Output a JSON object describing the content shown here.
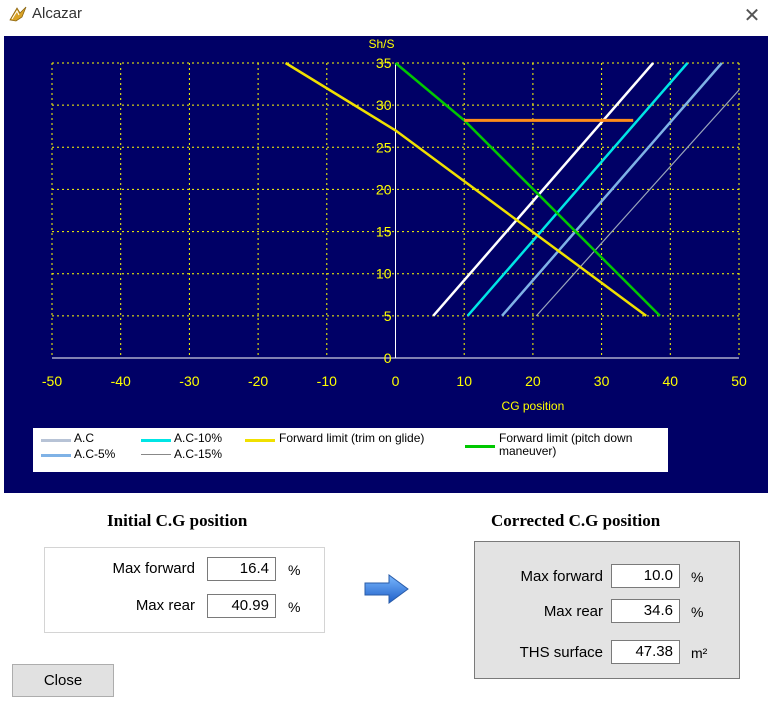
{
  "window": {
    "title": "Alcazar",
    "close_glyph": "✕",
    "icon": "alcazar-app-icon"
  },
  "chart_data": {
    "type": "line",
    "title": "",
    "xlabel": "CG position",
    "ylabel": "Sh/S",
    "xlim": [
      -50,
      50
    ],
    "ylim": [
      0,
      35
    ],
    "x_ticks": [
      -50,
      -40,
      -30,
      -20,
      -10,
      0,
      10,
      20,
      30,
      40,
      50
    ],
    "y_ticks": [
      0,
      5,
      10,
      15,
      20,
      25,
      30,
      35
    ],
    "grid": true,
    "legend_position": "bottom",
    "series": [
      {
        "name": "A.C",
        "color": "#ffffff",
        "width": 2.5,
        "points": [
          [
            5.5,
            5
          ],
          [
            37.5,
            35
          ]
        ]
      },
      {
        "name": "A.C-5%",
        "color": "#7fb2e6",
        "width": 2.5,
        "points": [
          [
            15.5,
            5
          ],
          [
            47.5,
            35
          ]
        ]
      },
      {
        "name": "A.C-10%",
        "color": "#00e5e5",
        "width": 2.5,
        "points": [
          [
            10.5,
            5
          ],
          [
            42.5,
            35
          ]
        ]
      },
      {
        "name": "A.C-15%",
        "color": "#9aa6bc",
        "width": 1.2,
        "points": [
          [
            20.5,
            5
          ],
          [
            50,
            31.8
          ]
        ]
      },
      {
        "name": "Forward limit (trim on glide)",
        "color": "#f0e000",
        "width": 2.5,
        "points": [
          [
            -16,
            35
          ],
          [
            0,
            27
          ],
          [
            36.5,
            5
          ]
        ]
      },
      {
        "name": "Forward limit (pitch down maneuver)",
        "color": "#00c800",
        "width": 2.5,
        "points": [
          [
            0,
            35
          ],
          [
            10,
            28.2
          ],
          [
            38.5,
            5
          ]
        ]
      },
      {
        "name": "",
        "color": "#ff8c1a",
        "width": 3,
        "points": [
          [
            10,
            28.2
          ],
          [
            34.6,
            28.2
          ]
        ]
      }
    ]
  },
  "legend": {
    "ac": "A.C",
    "ac5": "A.C-5%",
    "ac10": "A.C-10%",
    "ac15": "A.C-15%",
    "fwd_trim": "Forward limit (trim on glide)",
    "fwd_pitch_1": "Forward limit (pitch down",
    "fwd_pitch_2": "maneuver)"
  },
  "initial": {
    "title": "Initial C.G position",
    "max_forward_label": "Max forward",
    "max_forward_value": "16.4",
    "max_forward_unit": "%",
    "max_rear_label": "Max rear",
    "max_rear_value": "40.99",
    "max_rear_unit": "%"
  },
  "corrected": {
    "title": "Corrected C.G position",
    "max_forward_label": "Max forward",
    "max_forward_value": "10.0",
    "max_forward_unit": "%",
    "max_rear_label": "Max rear",
    "max_rear_value": "34.6",
    "max_rear_unit": "%",
    "ths_label": "THS surface",
    "ths_value": "47.38",
    "ths_unit": "m²"
  },
  "arrow_icon": "right-arrow-icon",
  "close_button": "Close",
  "colors": {
    "chart_bg": "#000066",
    "axis_text": "#ffff00",
    "grid": "#ffff00"
  }
}
